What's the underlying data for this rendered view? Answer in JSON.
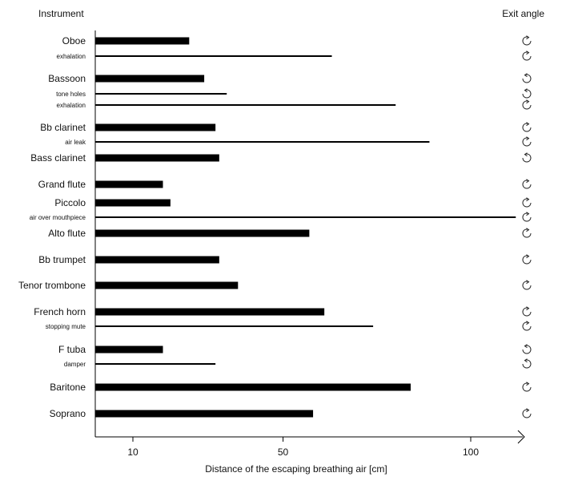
{
  "chart_data": {
    "type": "bar",
    "orientation": "horizontal",
    "title": "",
    "ylabel": "Instrument",
    "right_label": "Exit angle",
    "xlabel": "Distance of the escaping breathing air [cm]",
    "xticks": [
      10,
      50,
      100
    ],
    "xlim": [
      0,
      115
    ],
    "grid": false,
    "legend": "none",
    "bar_color": "#000000",
    "rows": [
      {
        "label": "Oboe",
        "value": 25,
        "kind": "main",
        "angle": "clockwise-arrow-icon"
      },
      {
        "label": "exhalation",
        "value": 63,
        "kind": "sub",
        "angle": "clockwise-arrow-icon"
      },
      {
        "label": "Bassoon",
        "value": 29,
        "kind": "main",
        "angle": "counterclockwise-arrow-icon"
      },
      {
        "label": "tone holes",
        "value": 35,
        "kind": "sub",
        "angle": "counterclockwise-arrow-icon"
      },
      {
        "label": "exhalation",
        "value": 80,
        "kind": "sub",
        "angle": "clockwise-arrow-icon"
      },
      {
        "label": "Bb clarinet",
        "value": 32,
        "kind": "main",
        "angle": "clockwise-arrow-icon"
      },
      {
        "label": "air leak",
        "value": 89,
        "kind": "sub",
        "angle": "clockwise-arrow-icon"
      },
      {
        "label": "Bass clarinet",
        "value": 33,
        "kind": "main",
        "angle": "counterclockwise-arrow-icon"
      },
      {
        "label": "Grand flute",
        "value": 18,
        "kind": "main",
        "angle": "clockwise-arrow-icon"
      },
      {
        "label": "Piccolo",
        "value": 20,
        "kind": "main",
        "angle": "clockwise-arrow-icon"
      },
      {
        "label": "air over mouthpiece",
        "value": 112,
        "kind": "sub",
        "angle": "clockwise-arrow-icon"
      },
      {
        "label": "Alto flute",
        "value": 57,
        "kind": "main",
        "angle": "clockwise-arrow-icon"
      },
      {
        "label": "Bb trumpet",
        "value": 33,
        "kind": "main",
        "angle": "clockwise-arrow-icon"
      },
      {
        "label": "Tenor trombone",
        "value": 38,
        "kind": "main",
        "angle": "clockwise-arrow-icon"
      },
      {
        "label": "French horn",
        "value": 61,
        "kind": "main",
        "angle": "clockwise-arrow-icon"
      },
      {
        "label": "stopping mute",
        "value": 74,
        "kind": "sub",
        "angle": "clockwise-arrow-icon"
      },
      {
        "label": "F tuba",
        "value": 18,
        "kind": "main",
        "angle": "counterclockwise-arrow-icon"
      },
      {
        "label": "damper",
        "value": 32,
        "kind": "sub",
        "angle": "counterclockwise-arrow-icon"
      },
      {
        "label": "Baritone",
        "value": 84,
        "kind": "main",
        "angle": "clockwise-arrow-icon"
      },
      {
        "label": "Soprano",
        "value": 58,
        "kind": "main",
        "angle": "clockwise-arrow-icon"
      }
    ]
  }
}
